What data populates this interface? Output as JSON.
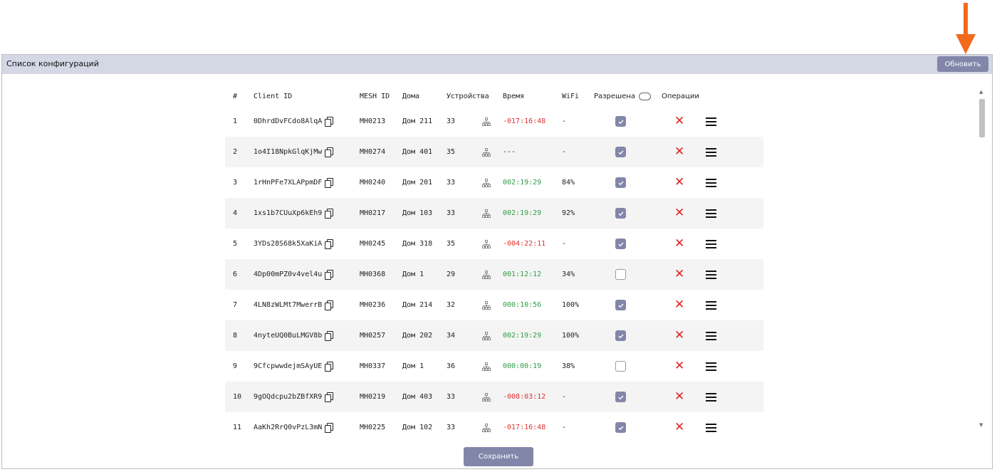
{
  "panel": {
    "title": "Список конфигураций",
    "refresh_label": "Обновить",
    "save_label": "Сохранить"
  },
  "colors": {
    "accent": "#8286a9",
    "header_bg": "#d4d7e4",
    "arrow": "#f46a1d",
    "negative": "#e03131",
    "positive": "#2f9e44",
    "delete": "#e02424"
  },
  "columns": {
    "num": "#",
    "client_id": "Client ID",
    "mesh_id": "MESH ID",
    "house": "Дома",
    "devices": "Устройства",
    "time": "Время",
    "wifi": "WiFi",
    "allowed": "Разрешена",
    "operations": "Операции"
  },
  "rows": [
    {
      "num": "1",
      "client_id": "0DhrdDvFCdo8AlqA",
      "mesh_id": "MH0213",
      "house": "Дом 211",
      "devices": "33",
      "time": "-017:16:48",
      "time_status": "neg",
      "wifi": "-",
      "allowed": true
    },
    {
      "num": "2",
      "client_id": "1o4I18NpkGlqKjMw",
      "mesh_id": "MH0274",
      "house": "Дом 401",
      "devices": "35",
      "time": "---",
      "time_status": "none",
      "wifi": "-",
      "allowed": true
    },
    {
      "num": "3",
      "client_id": "1rHnPFe7XLAPpmDF",
      "mesh_id": "MH0240",
      "house": "Дом 201",
      "devices": "33",
      "time": "002:19:29",
      "time_status": "pos",
      "wifi": "84%",
      "allowed": true
    },
    {
      "num": "4",
      "client_id": "1xs1b7CUuXp6kEh9",
      "mesh_id": "MH0217",
      "house": "Дом 103",
      "devices": "33",
      "time": "002:19:29",
      "time_status": "pos",
      "wifi": "92%",
      "allowed": true
    },
    {
      "num": "5",
      "client_id": "3YDs28S68k5XaKiA",
      "mesh_id": "MH0245",
      "house": "Дом 318",
      "devices": "35",
      "time": "-004:22:11",
      "time_status": "neg",
      "wifi": "-",
      "allowed": true
    },
    {
      "num": "6",
      "client_id": "4Dp00mPZ0v4vel4u",
      "mesh_id": "MH0368",
      "house": "Дом 1",
      "devices": "29",
      "time": "001:12:12",
      "time_status": "pos",
      "wifi": "34%",
      "allowed": false
    },
    {
      "num": "7",
      "client_id": "4LN8zWLMt7MwerrB",
      "mesh_id": "MH0236",
      "house": "Дом 214",
      "devices": "32",
      "time": "000:10:56",
      "time_status": "pos",
      "wifi": "100%",
      "allowed": true
    },
    {
      "num": "8",
      "client_id": "4nyteUQ0BuLMGV8b",
      "mesh_id": "MH0257",
      "house": "Дом 202",
      "devices": "34",
      "time": "002:19:29",
      "time_status": "pos",
      "wifi": "100%",
      "allowed": true
    },
    {
      "num": "9",
      "client_id": "9CfcpwwdejmSAyUE",
      "mesh_id": "MH0337",
      "house": "Дом 1",
      "devices": "36",
      "time": "000:00:19",
      "time_status": "pos",
      "wifi": "38%",
      "allowed": false
    },
    {
      "num": "10",
      "client_id": "9gOQdcpu2bZBfXR9",
      "mesh_id": "MH0219",
      "house": "Дом 403",
      "devices": "33",
      "time": "-008:03:12",
      "time_status": "neg",
      "wifi": "-",
      "allowed": true
    },
    {
      "num": "11",
      "client_id": "AaKh2RrQ0vPzL3mN",
      "mesh_id": "MH0225",
      "house": "Дом 102",
      "devices": "33",
      "time": "-017:16:48",
      "time_status": "neg",
      "wifi": "-",
      "allowed": true
    }
  ]
}
